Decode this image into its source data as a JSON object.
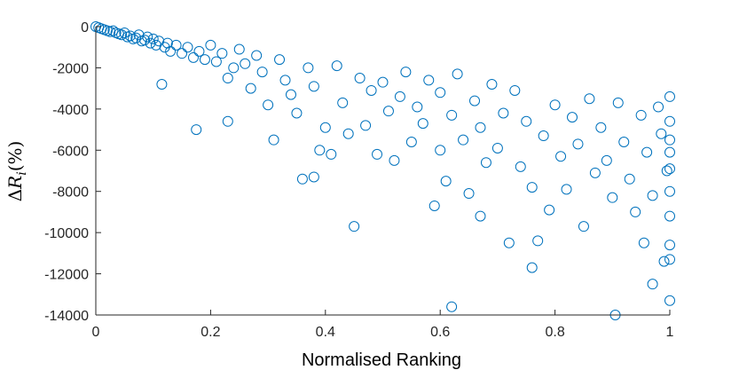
{
  "chart_data": {
    "type": "scatter",
    "title": "",
    "xlabel": "Normalised Ranking",
    "ylabel": "ΔR_i(%)",
    "ylabel_parts": {
      "delta": "Δ",
      "var": "R",
      "sub": "i",
      "unit": "(%)"
    },
    "xlim": [
      0,
      1
    ],
    "ylim": [
      -14000,
      0
    ],
    "xticks": [
      0,
      0.2,
      0.4,
      0.6,
      0.8,
      1
    ],
    "xtick_labels": [
      "0",
      "0.2",
      "0.4",
      "0.6",
      "0.8",
      "1"
    ],
    "yticks": [
      0,
      -2000,
      -4000,
      -6000,
      -8000,
      -10000,
      -12000,
      -14000
    ],
    "ytick_labels": [
      "0",
      "-2000",
      "-4000",
      "-6000",
      "-8000",
      "-10000",
      "-12000",
      "-14000"
    ],
    "grid": false,
    "marker": "open-circle",
    "color": "#0072BD",
    "series": [
      {
        "points": [
          [
            0.0,
            0
          ],
          [
            0.005,
            -50
          ],
          [
            0.01,
            -100
          ],
          [
            0.015,
            -150
          ],
          [
            0.02,
            -200
          ],
          [
            0.025,
            -250
          ],
          [
            0.03,
            -200
          ],
          [
            0.035,
            -300
          ],
          [
            0.04,
            -350
          ],
          [
            0.045,
            -400
          ],
          [
            0.05,
            -300
          ],
          [
            0.055,
            -500
          ],
          [
            0.06,
            -450
          ],
          [
            0.065,
            -600
          ],
          [
            0.07,
            -550
          ],
          [
            0.075,
            -400
          ],
          [
            0.08,
            -700
          ],
          [
            0.085,
            -650
          ],
          [
            0.09,
            -500
          ],
          [
            0.095,
            -800
          ],
          [
            0.1,
            -600
          ],
          [
            0.105,
            -900
          ],
          [
            0.11,
            -700
          ],
          [
            0.115,
            -2800
          ],
          [
            0.12,
            -1000
          ],
          [
            0.125,
            -800
          ],
          [
            0.13,
            -1200
          ],
          [
            0.14,
            -900
          ],
          [
            0.15,
            -1300
          ],
          [
            0.16,
            -1000
          ],
          [
            0.17,
            -1500
          ],
          [
            0.175,
            -5000
          ],
          [
            0.18,
            -1200
          ],
          [
            0.19,
            -1600
          ],
          [
            0.2,
            -900
          ],
          [
            0.21,
            -1700
          ],
          [
            0.22,
            -1300
          ],
          [
            0.23,
            -2500
          ],
          [
            0.23,
            -4600
          ],
          [
            0.24,
            -2000
          ],
          [
            0.25,
            -1100
          ],
          [
            0.26,
            -1800
          ],
          [
            0.27,
            -3000
          ],
          [
            0.28,
            -1400
          ],
          [
            0.29,
            -2200
          ],
          [
            0.3,
            -3800
          ],
          [
            0.31,
            -5500
          ],
          [
            0.32,
            -1600
          ],
          [
            0.33,
            -2600
          ],
          [
            0.34,
            -3300
          ],
          [
            0.35,
            -4200
          ],
          [
            0.36,
            -7400
          ],
          [
            0.37,
            -2000
          ],
          [
            0.38,
            -7300
          ],
          [
            0.38,
            -2900
          ],
          [
            0.39,
            -6000
          ],
          [
            0.4,
            -4900
          ],
          [
            0.41,
            -6200
          ],
          [
            0.42,
            -1900
          ],
          [
            0.43,
            -3700
          ],
          [
            0.44,
            -5200
          ],
          [
            0.45,
            -9700
          ],
          [
            0.46,
            -2500
          ],
          [
            0.47,
            -4800
          ],
          [
            0.48,
            -3100
          ],
          [
            0.49,
            -6200
          ],
          [
            0.5,
            -2700
          ],
          [
            0.51,
            -4100
          ],
          [
            0.52,
            -6500
          ],
          [
            0.53,
            -3400
          ],
          [
            0.54,
            -2200
          ],
          [
            0.55,
            -5600
          ],
          [
            0.56,
            -3900
          ],
          [
            0.57,
            -4700
          ],
          [
            0.58,
            -2600
          ],
          [
            0.59,
            -8700
          ],
          [
            0.6,
            -3200
          ],
          [
            0.6,
            -6000
          ],
          [
            0.61,
            -7500
          ],
          [
            0.62,
            -4300
          ],
          [
            0.62,
            -13600
          ],
          [
            0.63,
            -2300
          ],
          [
            0.64,
            -5500
          ],
          [
            0.65,
            -8100
          ],
          [
            0.66,
            -3600
          ],
          [
            0.67,
            -9200
          ],
          [
            0.67,
            -4900
          ],
          [
            0.68,
            -6600
          ],
          [
            0.69,
            -2800
          ],
          [
            0.7,
            -5900
          ],
          [
            0.71,
            -4200
          ],
          [
            0.72,
            -10500
          ],
          [
            0.73,
            -3100
          ],
          [
            0.74,
            -6800
          ],
          [
            0.75,
            -4600
          ],
          [
            0.76,
            -7800
          ],
          [
            0.76,
            -11700
          ],
          [
            0.77,
            -10400
          ],
          [
            0.78,
            -5300
          ],
          [
            0.79,
            -8900
          ],
          [
            0.8,
            -3800
          ],
          [
            0.81,
            -6300
          ],
          [
            0.82,
            -7900
          ],
          [
            0.83,
            -4400
          ],
          [
            0.84,
            -5700
          ],
          [
            0.85,
            -9700
          ],
          [
            0.86,
            -3500
          ],
          [
            0.87,
            -7100
          ],
          [
            0.88,
            -4900
          ],
          [
            0.89,
            -6500
          ],
          [
            0.9,
            -8300
          ],
          [
            0.905,
            -14000
          ],
          [
            0.91,
            -3700
          ],
          [
            0.92,
            -5600
          ],
          [
            0.93,
            -7400
          ],
          [
            0.94,
            -9000
          ],
          [
            0.95,
            -4300
          ],
          [
            0.955,
            -10500
          ],
          [
            0.96,
            -6100
          ],
          [
            0.97,
            -12500
          ],
          [
            0.97,
            -8200
          ],
          [
            0.98,
            -3900
          ],
          [
            0.985,
            -5200
          ],
          [
            0.99,
            -11400
          ],
          [
            0.995,
            -7000
          ],
          [
            1.0,
            -3400
          ],
          [
            1.0,
            -5500
          ],
          [
            1.0,
            -6900
          ],
          [
            1.0,
            -9200
          ],
          [
            1.0,
            -11300
          ],
          [
            1.0,
            -13300
          ],
          [
            1.0,
            -4600
          ],
          [
            1.0,
            -8000
          ],
          [
            1.0,
            -10600
          ],
          [
            1.0,
            -6100
          ]
        ]
      }
    ]
  }
}
